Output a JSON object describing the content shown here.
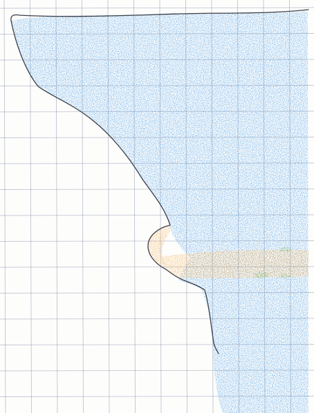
{
  "paper": {
    "background": "#fdfdfc",
    "grid_color": "#8f97ad"
  },
  "drawing": {
    "outline_color": "#3a3d46",
    "shape_fill_color": "#2f8fe3",
    "orange_band_color": "#f2a43a",
    "green_accent_color": "#4f9a3a"
  }
}
